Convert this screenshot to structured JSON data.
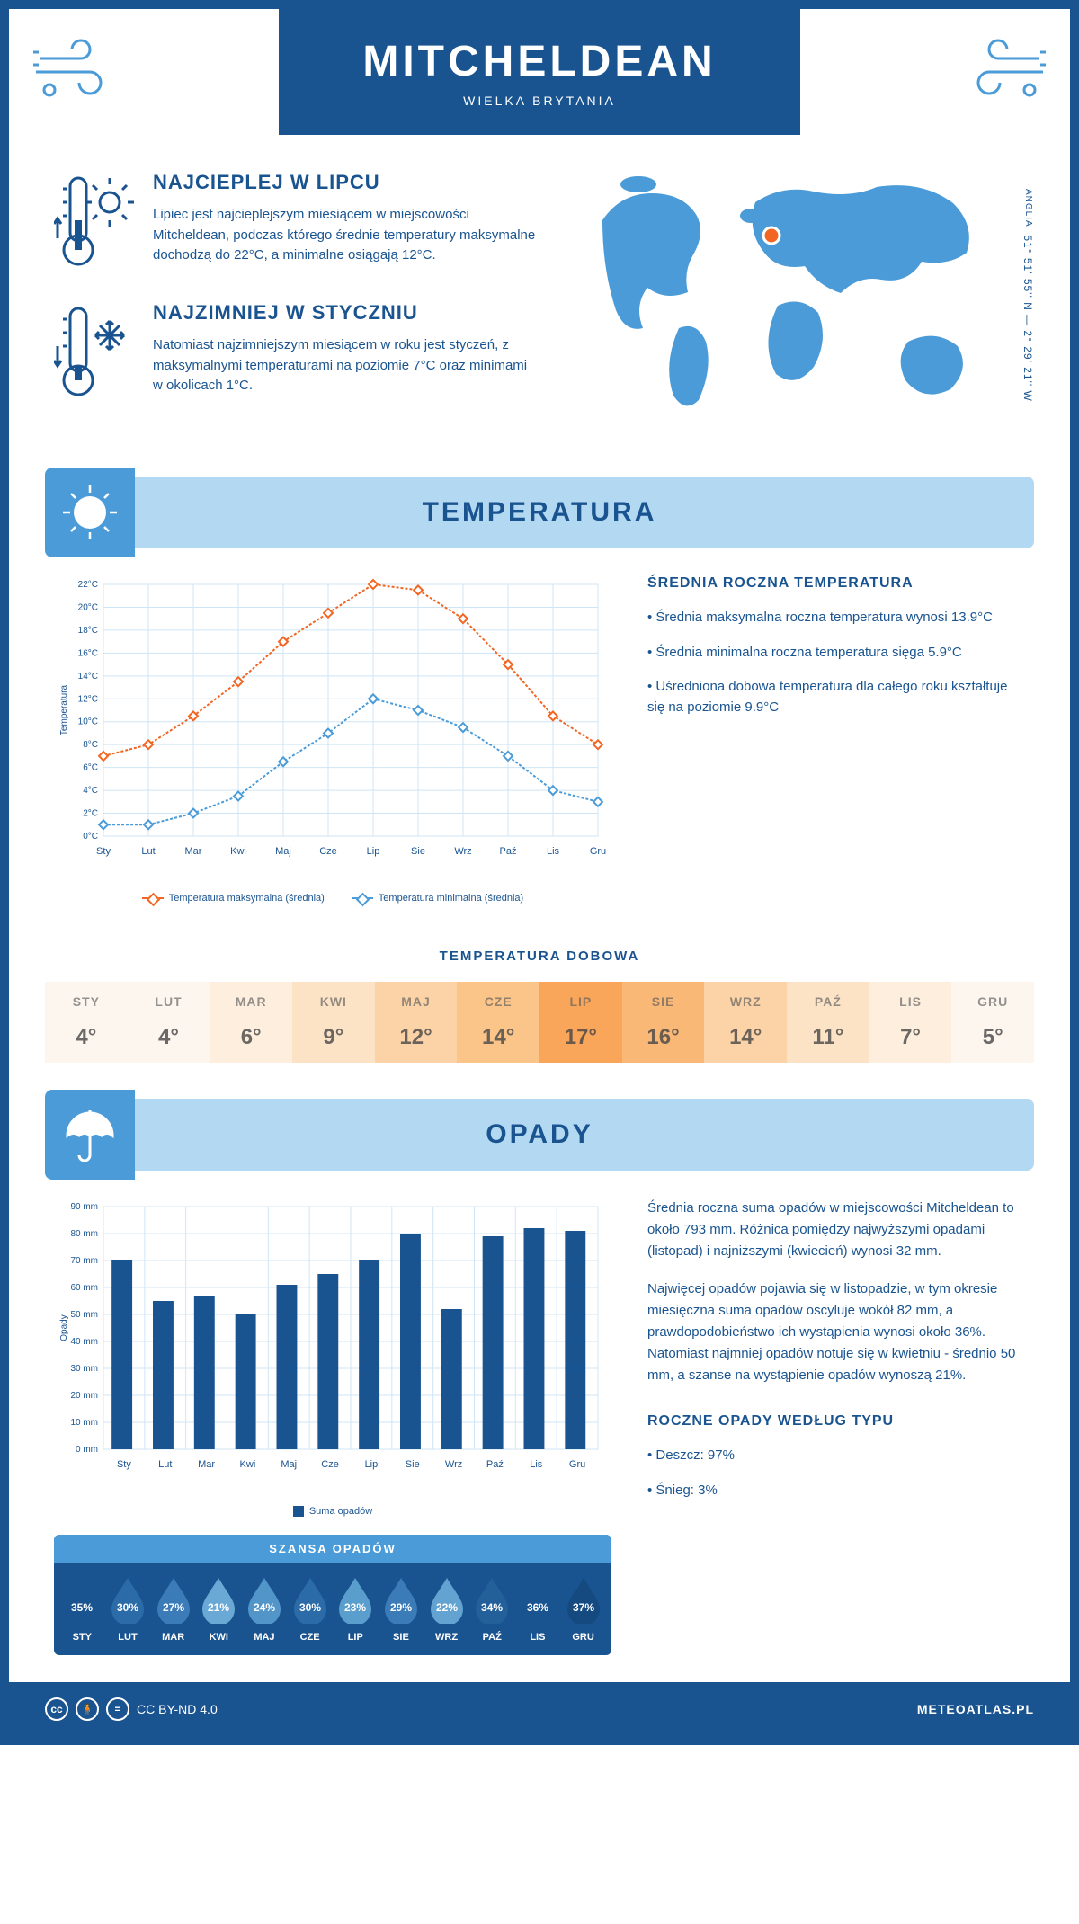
{
  "header": {
    "city": "MITCHELDEAN",
    "country": "WIELKA BRYTANIA"
  },
  "coords": {
    "text": "51° 51' 55'' N — 2° 29' 21'' W",
    "region": "ANGLIA"
  },
  "warmest": {
    "title": "NAJCIEPLEJ W LIPCU",
    "text": "Lipiec jest najcieplejszym miesiącem w miejscowości Mitcheldean, podczas którego średnie temperatury maksymalne dochodzą do 22°C, a minimalne osiągają 12°C."
  },
  "coldest": {
    "title": "NAJZIMNIEJ W STYCZNIU",
    "text": "Natomiast najzimniejszym miesiącem w roku jest styczeń, z maksymalnymi temperaturami na poziomie 7°C oraz minimami w okolicach 1°C."
  },
  "sections": {
    "temperature_title": "TEMPERATURA",
    "precip_title": "OPADY"
  },
  "temp_chart": {
    "type": "line",
    "months": [
      "Sty",
      "Lut",
      "Mar",
      "Kwi",
      "Maj",
      "Cze",
      "Lip",
      "Sie",
      "Wrz",
      "Paź",
      "Lis",
      "Gru"
    ],
    "max_series": [
      7,
      8,
      10.5,
      13.5,
      17,
      19.5,
      22,
      21.5,
      19,
      15,
      10.5,
      8
    ],
    "min_series": [
      1,
      1,
      2,
      3.5,
      6.5,
      9,
      12,
      11,
      9.5,
      7,
      4,
      3
    ],
    "ylim": [
      0,
      22
    ],
    "ytick_step": 2,
    "ylabel": "Temperatura",
    "line_max_color": "#f26522",
    "line_min_color": "#4a9bd8",
    "grid_color": "#cfe5f5",
    "legend_max": "Temperatura maksymalna (średnia)",
    "legend_min": "Temperatura minimalna (średnia)"
  },
  "temp_side": {
    "heading": "ŚREDNIA ROCZNA TEMPERATURA",
    "item1": "Średnia maksymalna roczna temperatura wynosi 13.9°C",
    "item2": "Średnia minimalna roczna temperatura sięga 5.9°C",
    "item3": "Uśredniona dobowa temperatura dla całego roku kształtuje się na poziomie 9.9°C"
  },
  "daily": {
    "heading": "TEMPERATURA DOBOWA",
    "months": [
      "STY",
      "LUT",
      "MAR",
      "KWI",
      "MAJ",
      "CZE",
      "LIP",
      "SIE",
      "WRZ",
      "PAŹ",
      "LIS",
      "GRU"
    ],
    "values": [
      "4°",
      "4°",
      "6°",
      "9°",
      "12°",
      "14°",
      "17°",
      "16°",
      "14°",
      "11°",
      "7°",
      "5°"
    ],
    "colors": [
      "#fdf6ee",
      "#fdf6ee",
      "#fdeedd",
      "#fde3c6",
      "#fcd3a6",
      "#fbc58a",
      "#f9a65a",
      "#fab877",
      "#fcd3a6",
      "#fde3c6",
      "#fdeedd",
      "#fdf6ee"
    ]
  },
  "precip_chart": {
    "type": "bar",
    "months": [
      "Sty",
      "Lut",
      "Mar",
      "Kwi",
      "Maj",
      "Cze",
      "Lip",
      "Sie",
      "Wrz",
      "Paź",
      "Lis",
      "Gru"
    ],
    "values": [
      70,
      55,
      57,
      50,
      61,
      65,
      70,
      80,
      52,
      79,
      82,
      81
    ],
    "ylim": [
      0,
      90
    ],
    "ytick_step": 10,
    "ylabel": "Opady",
    "bar_color": "#1a5490",
    "grid_color": "#cfe5f5",
    "legend": "Suma opadów"
  },
  "precip_side": {
    "para1": "Średnia roczna suma opadów w miejscowości Mitcheldean to około 793 mm. Różnica pomiędzy najwyższymi opadami (listopad) i najniższymi (kwiecień) wynosi 32 mm.",
    "para2": "Najwięcej opadów pojawia się w listopadzie, w tym okresie miesięczna suma opadów oscyluje wokół 82 mm, a prawdopodobieństwo ich wystąpienia wynosi około 36%. Natomiast najmniej opadów notuje się w kwietniu - średnio 50 mm, a szanse na wystąpienie opadów wynoszą 21%."
  },
  "chance": {
    "heading": "SZANSA OPADÓW",
    "months": [
      "STY",
      "LUT",
      "MAR",
      "KWI",
      "MAJ",
      "CZE",
      "LIP",
      "SIE",
      "WRZ",
      "PAŹ",
      "LIS",
      "GRU"
    ],
    "values": [
      "35%",
      "30%",
      "27%",
      "21%",
      "24%",
      "30%",
      "23%",
      "29%",
      "22%",
      "34%",
      "36%",
      "37%"
    ],
    "colors": [
      "#1a5490",
      "#2b6ba8",
      "#3a7bb8",
      "#6aa9d6",
      "#5296c9",
      "#2b6ba8",
      "#5a9ecd",
      "#3a7bb8",
      "#62a3d1",
      "#236099",
      "#1a5490",
      "#154a80"
    ]
  },
  "precip_type": {
    "heading": "ROCZNE OPADY WEDŁUG TYPU",
    "item1": "Deszcz: 97%",
    "item2": "Śnieg: 3%"
  },
  "footer": {
    "license": "CC BY-ND 4.0",
    "site": "METEOATLAS.PL"
  }
}
